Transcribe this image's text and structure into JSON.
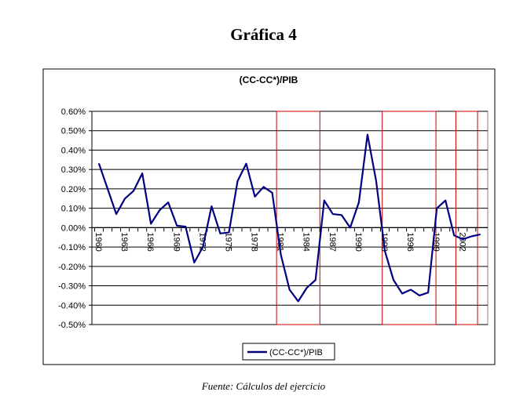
{
  "heading": "Gráfica 4",
  "footer": "Fuente: Cálculos del ejercicio",
  "chart_data": {
    "type": "line",
    "title": "(CC-CC*)/PIB",
    "xlabel": "",
    "ylabel": "",
    "ylim": [
      -0.5,
      0.6
    ],
    "yticks": [
      0.6,
      0.5,
      0.4,
      0.3,
      0.2,
      0.1,
      0.0,
      -0.1,
      -0.2,
      -0.3,
      -0.4,
      -0.5
    ],
    "ytick_labels": [
      "0.60%",
      "0.50%",
      "0.40%",
      "0.30%",
      "0.20%",
      "0.10%",
      "0.00%",
      "-0.10%",
      "-0.20%",
      "-0.30%",
      "-0.40%",
      "-0.50%"
    ],
    "x": [
      1960,
      1961,
      1962,
      1963,
      1964,
      1965,
      1966,
      1967,
      1968,
      1969,
      1970,
      1971,
      1972,
      1973,
      1974,
      1975,
      1976,
      1977,
      1978,
      1979,
      1980,
      1981,
      1982,
      1983,
      1984,
      1985,
      1986,
      1987,
      1988,
      1989,
      1990,
      1991,
      1992,
      1993,
      1994,
      1995,
      1996,
      1997,
      1998,
      1999,
      2000,
      2001,
      2002,
      2003,
      2004
    ],
    "xtick_labels": [
      "1960",
      "1963",
      "1966",
      "1969",
      "1972",
      "1975",
      "1978",
      "1981",
      "1984",
      "1987",
      "1990",
      "1993",
      "1996",
      "1999",
      "2002"
    ],
    "series": [
      {
        "name": "(CC-CC*)/PIB",
        "color": "#000080",
        "values": [
          0.33,
          0.2,
          0.07,
          0.15,
          0.19,
          0.28,
          0.02,
          0.09,
          0.13,
          0.01,
          0.005,
          -0.18,
          -0.1,
          0.11,
          -0.03,
          -0.025,
          0.24,
          0.33,
          0.16,
          0.21,
          0.18,
          -0.14,
          -0.32,
          -0.38,
          -0.31,
          -0.27,
          0.14,
          0.07,
          0.065,
          0.0,
          0.13,
          0.48,
          0.24,
          -0.12,
          -0.27,
          -0.34,
          -0.32,
          -0.35,
          -0.335,
          0.1,
          0.14,
          -0.04,
          -0.06,
          -0.045,
          -0.035
        ]
      }
    ],
    "highlight_periods": [
      [
        1980.5,
        1985.5
      ],
      [
        1992.7,
        1998.9
      ],
      [
        2001.2,
        2003.7
      ]
    ],
    "highlight_color": "#cc0000",
    "grid": true,
    "legend": "bottom-center"
  }
}
